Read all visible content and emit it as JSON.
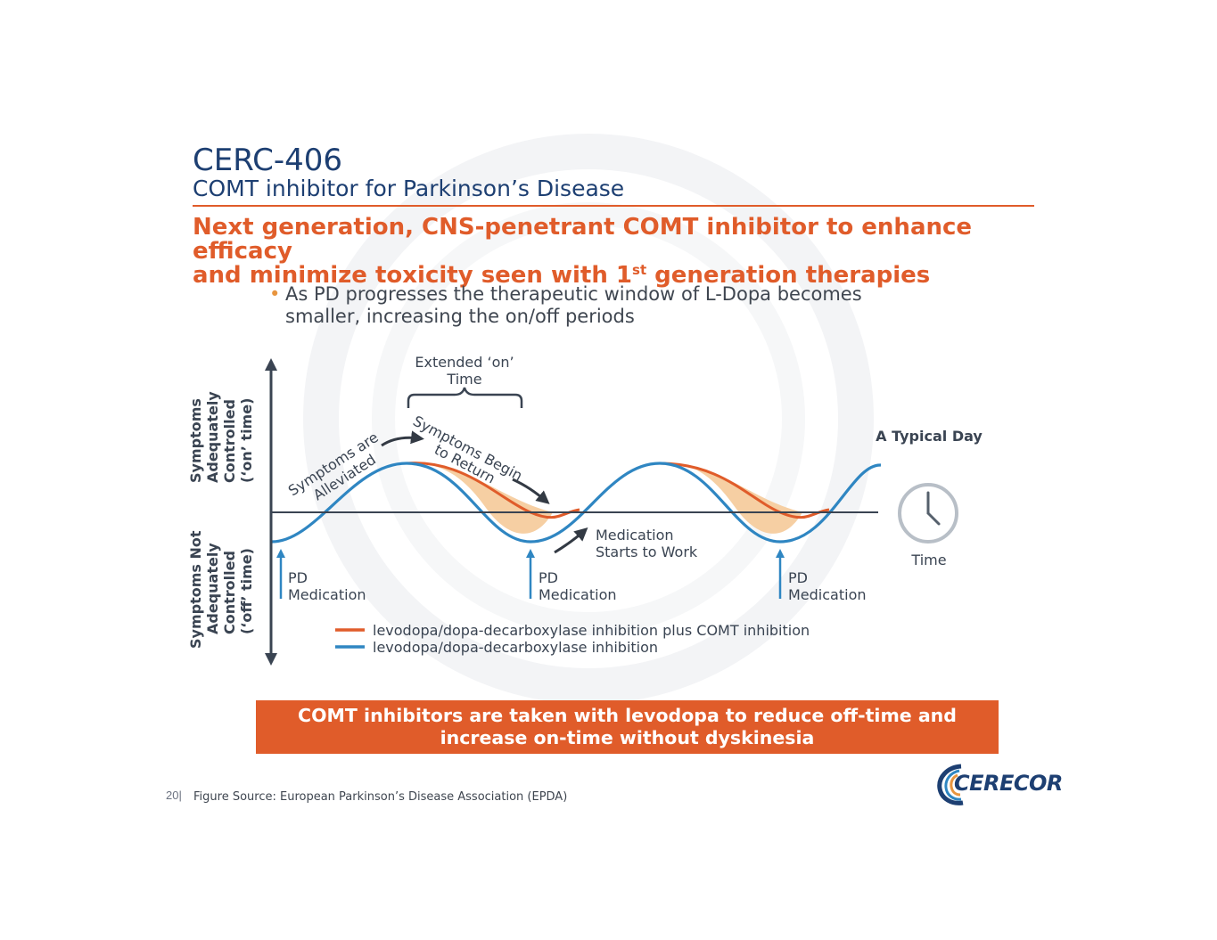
{
  "title": "CERC-406",
  "subtitle": "COMT inhibitor for Parkinson’s Disease",
  "headline": {
    "line1": "Next generation, CNS-penetrant COMT inhibitor to enhance efficacy",
    "line2_pre": "and minimize toxicity seen with 1",
    "line2_sup": "st",
    "line2_post": " generation therapies"
  },
  "bullet": {
    "glyph": "•",
    "line1": "As PD progresses the therapeutic window of L-Dopa becomes",
    "line2": "smaller, increasing the on/off periods"
  },
  "diagram": {
    "y_axis_top": [
      "Symptoms",
      "Adequately",
      "Controlled",
      "(‘on’ time)"
    ],
    "y_axis_bottom": [
      "Symptoms Not",
      "Adequately",
      "Controlled",
      "(‘off’ time)"
    ],
    "extended_on": [
      "Extended ‘on’",
      "Time"
    ],
    "alleviated": [
      "Symptoms are",
      "Alleviated"
    ],
    "begin_return": [
      "Symptoms Begin",
      "to Return"
    ],
    "starts_work": [
      "Medication",
      "Starts to Work"
    ],
    "pd_med": [
      {
        "line1": "PD",
        "line2": "Medication"
      },
      {
        "line1": "PD",
        "line2": "Medication"
      },
      {
        "line1": "PD",
        "line2": "Medication"
      }
    ],
    "typical_day": "A Typical Day",
    "time_label": "Time",
    "legend": [
      {
        "label": "levodopa/dopa-decarboxylase inhibition plus COMT inhibition",
        "color": "#e05c2a"
      },
      {
        "label": "levodopa/dopa-decarboxylase inhibition",
        "color": "#2f86c2"
      }
    ],
    "colors": {
      "axis": "#3a4452",
      "fill": "#f6cfa3",
      "arrow": "#333a44",
      "clock": "#b8bfc7",
      "callout": "#2f86c2"
    },
    "clock_icon": "clock-icon"
  },
  "banner": {
    "line1": "COMT inhibitors are taken with levodopa to reduce off-time and",
    "line2": "increase on-time without dyskinesia"
  },
  "footer": {
    "page": "20|",
    "source": "Figure Source: European Parkinson’s Disease Association (EPDA)"
  },
  "logo": {
    "text": "CERECOR"
  }
}
